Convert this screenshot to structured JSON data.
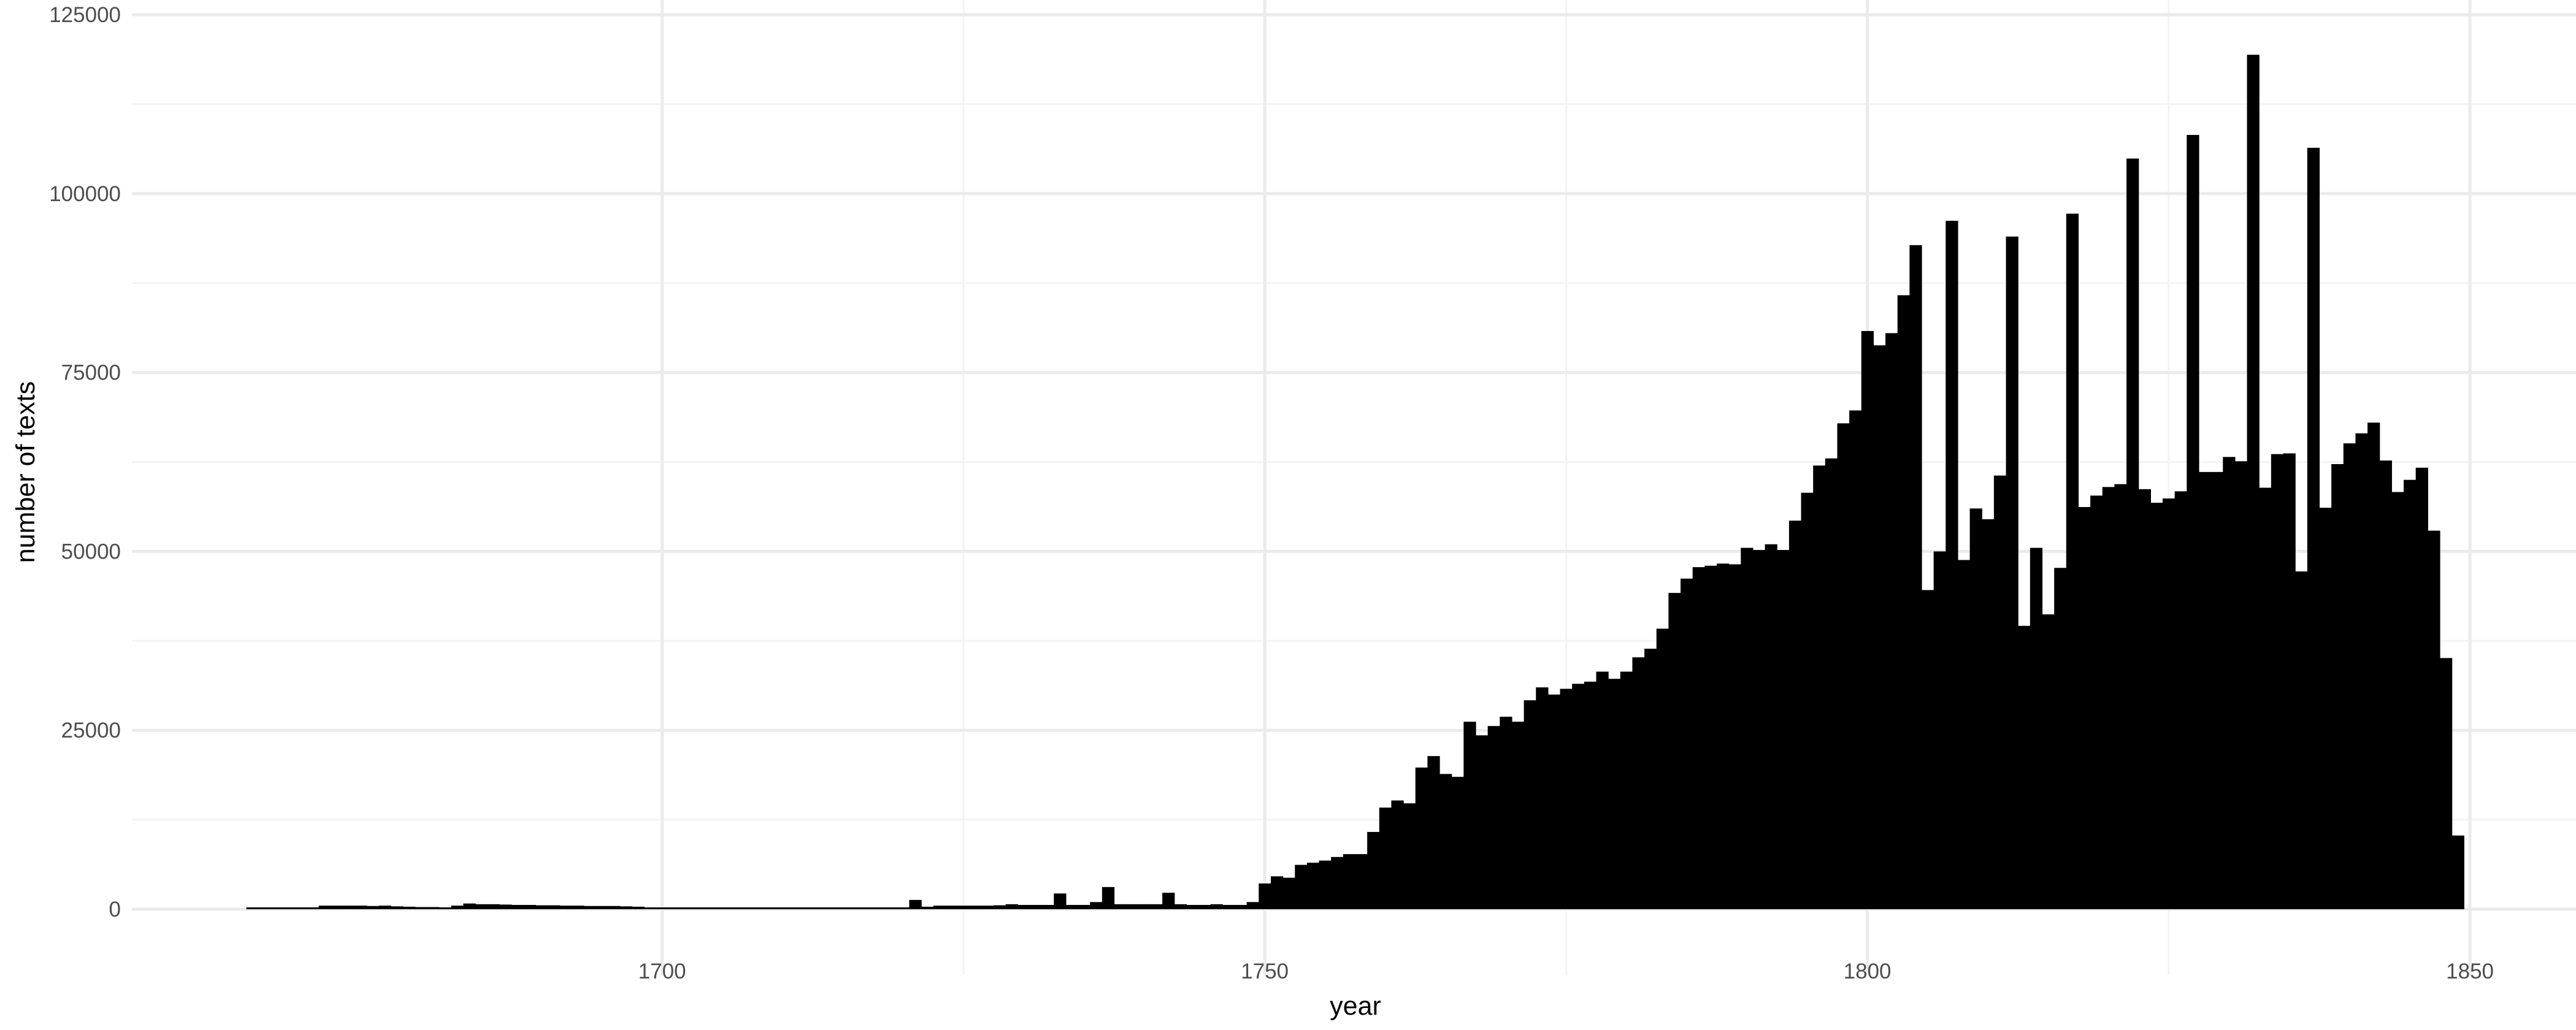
{
  "chart_data": {
    "type": "bar",
    "title": "",
    "xlabel": "year",
    "ylabel": "number of texts",
    "xlim": [
      1660,
      1855
    ],
    "ylim": [
      0,
      125000
    ],
    "x_ticks": [
      1700,
      1750,
      1800,
      1850
    ],
    "x_tick_labels": [
      "1700",
      "1750",
      "1800",
      "1850"
    ],
    "y_ticks": [
      0,
      25000,
      50000,
      75000,
      100000,
      125000
    ],
    "y_tick_labels": [
      "0",
      "25000",
      "50000",
      "75000",
      "100000",
      "125000"
    ],
    "grid": true,
    "bar_color": "#000000",
    "x_start": 1666,
    "values": [
      200,
      200,
      200,
      200,
      200,
      200,
      500,
      500,
      500,
      500,
      450,
      500,
      400,
      350,
      300,
      300,
      250,
      500,
      800,
      700,
      700,
      650,
      600,
      600,
      550,
      550,
      500,
      500,
      450,
      450,
      450,
      400,
      350,
      100,
      100,
      100,
      100,
      100,
      100,
      100,
      100,
      100,
      100,
      100,
      100,
      100,
      100,
      100,
      100,
      100,
      100,
      100,
      100,
      100,
      100,
      1300,
      350,
      500,
      500,
      500,
      500,
      500,
      550,
      700,
      600,
      600,
      600,
      2200,
      600,
      600,
      1000,
      3100,
      700,
      700,
      700,
      700,
      2300,
      700,
      600,
      600,
      700,
      600,
      600,
      1000,
      3600,
      4600,
      4400,
      6200,
      6500,
      6800,
      7300,
      7700,
      7700,
      10800,
      14200,
      15200,
      14800,
      19800,
      21400,
      18900,
      18500,
      26200,
      24300,
      25600,
      26900,
      26200,
      29200,
      31000,
      30000,
      30800,
      31500,
      31800,
      33200,
      32200,
      33200,
      35200,
      36400,
      39200,
      44200,
      46200,
      47800,
      48000,
      48300,
      48200,
      50500,
      50200,
      51000,
      50200,
      54300,
      58200,
      62000,
      63000,
      67900,
      69700,
      80800,
      78800,
      80500,
      85800,
      92800,
      44600,
      50000,
      96200,
      48800,
      56000,
      54500,
      60600,
      94000,
      39600,
      50500,
      41200,
      47700,
      97200,
      56200,
      57800,
      59000,
      59400,
      104900,
      58700,
      56800,
      57400,
      58400,
      108200,
      61100,
      61100,
      63200,
      62600,
      119400,
      58900,
      63600,
      63700,
      47200,
      106400,
      56100,
      62200,
      65100,
      66500,
      68000,
      62700,
      58300,
      60000,
      61700,
      52900,
      35100,
      10300
    ]
  }
}
